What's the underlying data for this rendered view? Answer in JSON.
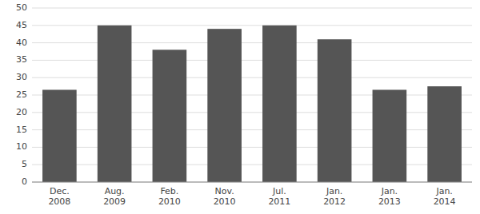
{
  "chart_data": {
    "type": "bar",
    "categories": [
      "Dec.\n2008",
      "Aug.\n2009",
      "Feb.\n2010",
      "Nov.\n2010",
      "Jul.\n2011",
      "Jan.\n2012",
      "Jan.\n2013",
      "Jan.\n2014"
    ],
    "values": [
      26.5,
      45.0,
      38.0,
      44.0,
      45.0,
      41.0,
      26.5,
      27.5
    ],
    "color": "#555555",
    "ylim": [
      0,
      50
    ],
    "yticks": [
      0,
      5,
      10,
      15,
      20,
      25,
      30,
      35,
      40,
      45,
      50
    ],
    "grid": true
  }
}
